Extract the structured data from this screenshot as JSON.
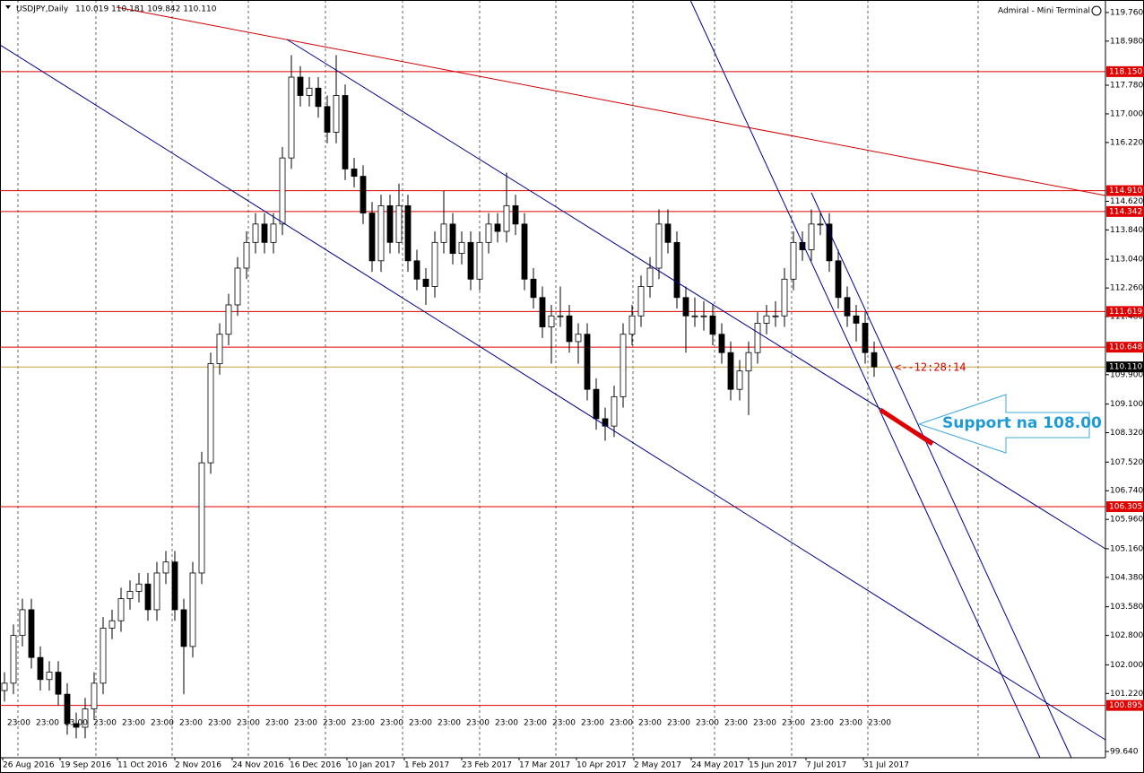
{
  "chart_data": {
    "type": "candlestick",
    "title": "USDJPY,Daily",
    "quote": "110.019 110.181 109.842 110.110",
    "terminal": "Admiral - Mini Terminal",
    "annotation": "Support na 108.00",
    "countdown": "<--12:28:14",
    "bull_color": "#ffffff",
    "bear_color": "#000000",
    "level_color": "#e00000",
    "ylim": [
      99.47,
      120.1
    ],
    "yticks": [
      {
        "value": 119.76,
        "label": "119.760"
      },
      {
        "value": 118.98,
        "label": "118.980"
      },
      {
        "value": 117.78,
        "label": "117.780"
      },
      {
        "value": 117,
        "label": "117.000"
      },
      {
        "value": 116.22,
        "label": "116.220"
      },
      {
        "value": 114.62,
        "label": "114.620"
      },
      {
        "value": 113.84,
        "label": "113.840"
      },
      {
        "value": 113.04,
        "label": "113.040"
      },
      {
        "value": 112.26,
        "label": "112.260"
      },
      {
        "value": 111.48,
        "label": "111.480"
      },
      {
        "value": 109.9,
        "label": "109.900"
      },
      {
        "value": 109.1,
        "label": "109.100"
      },
      {
        "value": 108.32,
        "label": "108.320"
      },
      {
        "value": 107.52,
        "label": "107.520"
      },
      {
        "value": 106.74,
        "label": "106.740"
      },
      {
        "value": 105.96,
        "label": "105.960"
      },
      {
        "value": 105.16,
        "label": "105.160"
      },
      {
        "value": 104.38,
        "label": "104.380"
      },
      {
        "value": 103.58,
        "label": "103.580"
      },
      {
        "value": 102.8,
        "label": "102.800"
      },
      {
        "value": 102,
        "label": "102.000"
      },
      {
        "value": 101.22,
        "label": "101.220"
      },
      {
        "value": 99.64,
        "label": "99.640"
      }
    ],
    "levels": [
      {
        "value": 118.15,
        "label": "118.150"
      },
      {
        "value": 114.91,
        "label": "114.910"
      },
      {
        "value": 114.342,
        "label": "114.342"
      },
      {
        "value": 111.619,
        "label": "111.619"
      },
      {
        "value": 110.648,
        "label": "110.648"
      },
      {
        "value": 106.305,
        "label": "106.305"
      },
      {
        "value": 100.895,
        "label": "100.895"
      }
    ],
    "current": {
      "value": 110.11,
      "label": "110.110"
    },
    "x_labels": [
      "26 Aug 2016",
      "19 Sep 2016",
      "11 Oct 2016",
      "2 Nov 2016",
      "24 Nov 2016",
      "16 Dec 2016",
      "10 Jan 2017",
      "1 Feb 2017",
      "23 Feb 2017",
      "17 Mar 2017",
      "10 Apr 2017",
      "2 May 2017",
      "24 May 2017",
      "15 Jun 2017",
      "7 Jul 2017",
      "31 Jul 2017"
    ],
    "session_labels": [
      "23:00",
      "23:00",
      "23:00",
      "23:00",
      "23:00",
      "23:00",
      "23:00",
      "23:00",
      "23:00",
      "23:00",
      "23:00",
      "23:00",
      "23:00",
      "23:00",
      "23:00",
      "23:00",
      "23:00",
      "23:00",
      "23:00",
      "23:00",
      "23:00",
      "23:00",
      "23:00",
      "23:00",
      "23:00",
      "23:00",
      "23:00",
      "23:00",
      "23:00",
      "23:00",
      "23:00"
    ],
    "candles": [
      [
        101.3,
        101.8,
        101.0,
        101.5
      ],
      [
        101.5,
        103.1,
        101.2,
        102.8
      ],
      [
        102.8,
        103.8,
        102.5,
        103.5
      ],
      [
        103.5,
        103.8,
        101.9,
        102.2
      ],
      [
        102.2,
        102.5,
        101.3,
        101.6
      ],
      [
        101.6,
        102.1,
        101.3,
        101.8
      ],
      [
        101.8,
        102.1,
        100.9,
        101.2
      ],
      [
        101.2,
        101.5,
        100.1,
        100.4
      ],
      [
        100.4,
        100.7,
        100.0,
        100.3
      ],
      [
        100.3,
        101.1,
        100.0,
        100.8
      ],
      [
        100.8,
        101.8,
        100.5,
        101.5
      ],
      [
        101.5,
        103.3,
        101.2,
        103.0
      ],
      [
        103.0,
        103.5,
        102.7,
        103.2
      ],
      [
        103.2,
        104.1,
        102.9,
        103.8
      ],
      [
        103.8,
        104.3,
        103.5,
        104.0
      ],
      [
        104.0,
        104.5,
        103.7,
        104.2
      ],
      [
        104.2,
        104.5,
        103.2,
        103.5
      ],
      [
        103.5,
        104.8,
        103.2,
        104.5
      ],
      [
        104.5,
        105.1,
        104.2,
        104.8
      ],
      [
        104.8,
        105.1,
        103.2,
        103.5
      ],
      [
        103.5,
        103.8,
        101.2,
        102.5
      ],
      [
        102.5,
        104.8,
        102.2,
        104.5
      ],
      [
        104.5,
        107.8,
        104.2,
        107.5
      ],
      [
        107.5,
        110.5,
        107.2,
        110.2
      ],
      [
        110.2,
        111.3,
        109.9,
        111.0
      ],
      [
        111.0,
        112.1,
        110.7,
        111.8
      ],
      [
        111.8,
        113.1,
        111.5,
        112.8
      ],
      [
        112.8,
        113.8,
        112.5,
        113.5
      ],
      [
        113.5,
        114.3,
        113.2,
        114.0
      ],
      [
        114.0,
        114.3,
        113.2,
        113.5
      ],
      [
        113.5,
        114.3,
        113.2,
        114.0
      ],
      [
        114.0,
        116.1,
        113.7,
        115.8
      ],
      [
        115.8,
        118.6,
        115.5,
        118.0
      ],
      [
        118.0,
        118.3,
        117.2,
        117.5
      ],
      [
        117.5,
        118.0,
        117.2,
        117.7
      ],
      [
        117.7,
        118.0,
        116.9,
        117.2
      ],
      [
        117.2,
        117.5,
        116.2,
        116.5
      ],
      [
        116.5,
        118.6,
        116.2,
        117.5
      ],
      [
        117.5,
        117.8,
        115.2,
        115.5
      ],
      [
        115.5,
        115.8,
        115.0,
        115.3
      ],
      [
        115.3,
        115.6,
        114.0,
        114.3
      ],
      [
        114.3,
        114.6,
        112.7,
        113.0
      ],
      [
        113.0,
        114.8,
        112.7,
        114.5
      ],
      [
        114.5,
        114.8,
        113.2,
        113.5
      ],
      [
        113.5,
        115.1,
        113.2,
        114.5
      ],
      [
        114.5,
        114.8,
        112.7,
        113.0
      ],
      [
        113.0,
        113.3,
        112.2,
        112.5
      ],
      [
        112.5,
        112.8,
        111.8,
        112.3
      ],
      [
        112.3,
        113.8,
        112.0,
        113.5
      ],
      [
        113.5,
        114.9,
        113.2,
        114.0
      ],
      [
        114.0,
        114.3,
        112.9,
        113.2
      ],
      [
        113.2,
        113.8,
        112.9,
        113.5
      ],
      [
        113.5,
        113.8,
        112.2,
        112.5
      ],
      [
        112.5,
        113.8,
        112.2,
        113.5
      ],
      [
        113.5,
        114.3,
        113.2,
        114.0
      ],
      [
        114.0,
        114.3,
        113.5,
        113.8
      ],
      [
        113.8,
        115.4,
        113.5,
        114.5
      ],
      [
        114.5,
        114.8,
        113.7,
        114.0
      ],
      [
        114.0,
        114.3,
        112.2,
        112.5
      ],
      [
        112.5,
        112.8,
        111.7,
        112.0
      ],
      [
        112.0,
        112.3,
        110.9,
        111.2
      ],
      [
        111.2,
        111.8,
        110.2,
        111.5
      ],
      [
        111.5,
        112.3,
        111.2,
        111.5
      ],
      [
        111.5,
        111.8,
        110.5,
        110.8
      ],
      [
        110.8,
        111.3,
        110.2,
        111.0
      ],
      [
        111.0,
        111.3,
        109.2,
        109.5
      ],
      [
        109.5,
        109.8,
        108.4,
        108.7
      ],
      [
        108.7,
        109.0,
        108.1,
        108.5
      ],
      [
        108.5,
        109.6,
        108.2,
        109.3
      ],
      [
        109.3,
        111.3,
        109.0,
        111.0
      ],
      [
        111.0,
        111.8,
        110.7,
        111.5
      ],
      [
        111.5,
        112.6,
        111.2,
        112.3
      ],
      [
        112.3,
        113.1,
        112.0,
        112.8
      ],
      [
        112.8,
        114.4,
        112.5,
        114.0
      ],
      [
        114.0,
        114.4,
        113.2,
        113.5
      ],
      [
        113.5,
        113.8,
        111.7,
        112.0
      ],
      [
        112.0,
        112.3,
        110.5,
        111.5
      ],
      [
        111.5,
        112.0,
        111.2,
        111.5
      ],
      [
        111.5,
        111.9,
        111.1,
        111.5
      ],
      [
        111.5,
        111.8,
        110.7,
        111.0
      ],
      [
        111.0,
        111.3,
        110.2,
        110.5
      ],
      [
        110.5,
        110.8,
        109.2,
        109.5
      ],
      [
        109.5,
        110.3,
        109.2,
        110.0
      ],
      [
        110.0,
        110.8,
        108.8,
        110.5
      ],
      [
        110.5,
        111.6,
        110.2,
        111.3
      ],
      [
        111.3,
        111.8,
        111.0,
        111.5
      ],
      [
        111.5,
        111.9,
        111.2,
        111.5
      ],
      [
        111.5,
        112.8,
        111.2,
        112.5
      ],
      [
        112.5,
        113.8,
        112.2,
        113.5
      ],
      [
        113.5,
        113.8,
        113.0,
        113.3
      ],
      [
        113.3,
        114.4,
        113.0,
        114.0
      ],
      [
        114.0,
        114.3,
        113.7,
        114.0
      ],
      [
        114.0,
        114.3,
        112.7,
        113.0
      ],
      [
        113.0,
        113.3,
        111.7,
        112.0
      ],
      [
        112.0,
        112.3,
        111.2,
        111.5
      ],
      [
        111.5,
        111.8,
        110.8,
        111.3
      ],
      [
        111.3,
        111.6,
        110.2,
        110.5
      ],
      [
        110.5,
        110.8,
        109.84,
        110.11
      ]
    ]
  }
}
